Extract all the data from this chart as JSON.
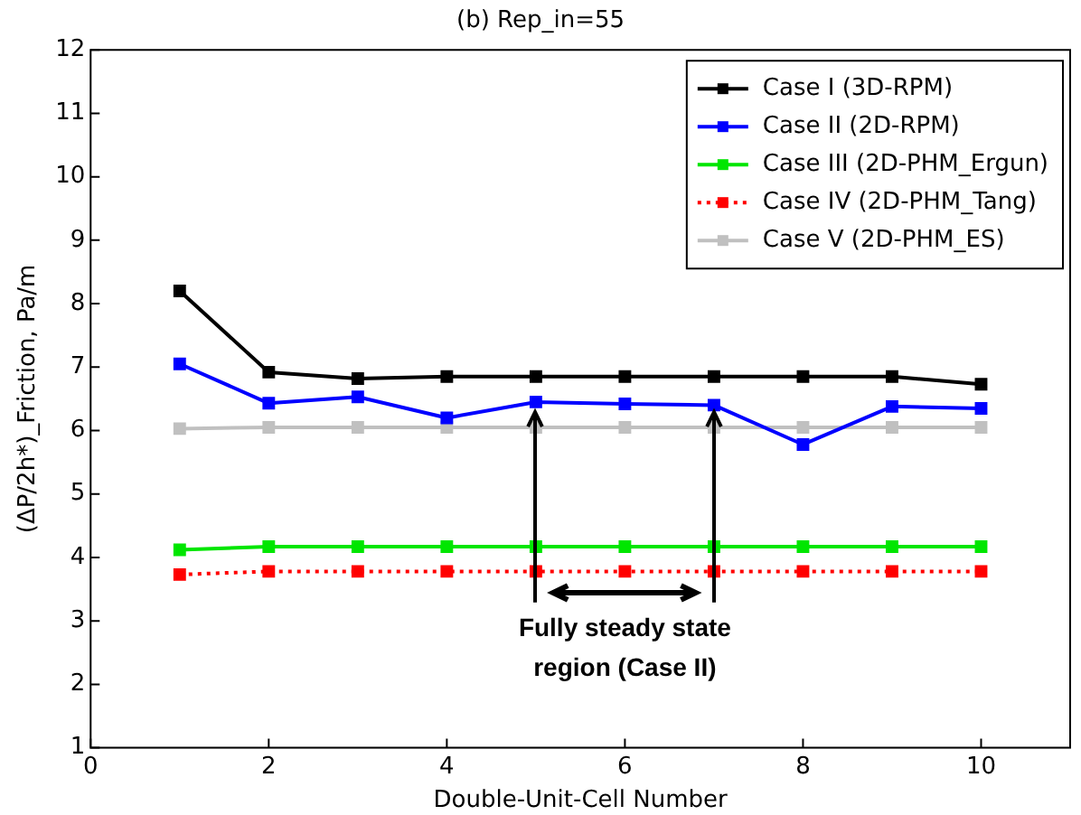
{
  "chart_data": {
    "type": "line",
    "title": "(b) Rep_in=55",
    "xlabel": "Double-Unit-Cell Number",
    "ylabel": "(ΔP/2h*)_Friction, Pa/m",
    "x": [
      1,
      2,
      3,
      4,
      5,
      6,
      7,
      8,
      9,
      10
    ],
    "series": [
      {
        "name": "Case I (3D-RPM)",
        "color": "#000000",
        "values": [
          8.2,
          6.92,
          6.82,
          6.85,
          6.85,
          6.85,
          6.85,
          6.85,
          6.85,
          6.73
        ]
      },
      {
        "name": "Case II (2D-RPM)",
        "color": "#0000ff",
        "values": [
          7.05,
          6.43,
          6.53,
          6.2,
          6.45,
          6.42,
          6.4,
          5.78,
          6.38,
          6.35
        ]
      },
      {
        "name": "Case III (2D-PHM_Ergun)",
        "color": "#00e600",
        "values": [
          4.12,
          4.17,
          4.17,
          4.17,
          4.17,
          4.17,
          4.17,
          4.17,
          4.17,
          4.17
        ]
      },
      {
        "name": "Case IV (2D-PHM_Tang)",
        "color": "#ff0000",
        "line_style": "dotted",
        "values": [
          3.73,
          3.78,
          3.78,
          3.78,
          3.78,
          3.78,
          3.78,
          3.78,
          3.78,
          3.78
        ]
      },
      {
        "name": "Case V (2D-PHM_ES)",
        "color": "#c0c0c0",
        "values": [
          6.03,
          6.05,
          6.05,
          6.05,
          6.05,
          6.05,
          6.05,
          6.05,
          6.05,
          6.05
        ]
      }
    ],
    "xlim": [
      0,
      11
    ],
    "xticks": [
      0,
      2,
      4,
      6,
      8,
      10
    ],
    "ylim": [
      1,
      12
    ],
    "yticks": [
      1,
      2,
      3,
      4,
      5,
      6,
      7,
      8,
      9,
      10,
      11,
      12
    ],
    "grid": false,
    "legend": "top right",
    "marker": "square",
    "line_style": "solid",
    "annotations": [
      {
        "text": "Fully steady state region (Case II)",
        "x": 5,
        "y": 6.45
      }
    ]
  }
}
